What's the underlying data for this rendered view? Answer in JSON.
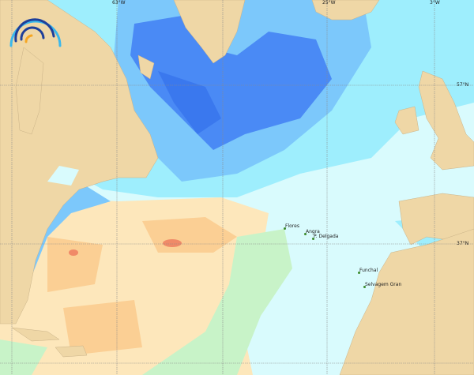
{
  "map": {
    "grid_labels": {
      "lon": [
        "63°W",
        "25°W",
        "3°W"
      ],
      "lat": [
        "57°N",
        "37°N"
      ]
    },
    "places": [
      "Flores",
      "Angra",
      "P. Delgada",
      "Funchal",
      "Selvagem Gran"
    ],
    "colors": {
      "land": "#efd7a6",
      "ocean_pale": "#d9fbfd",
      "blue_light": "#9eeefd",
      "blue_mid": "#7cc8fb",
      "blue_dark": "#4a8af5",
      "green": "#c8f3c8",
      "yellow": "#fde7bb",
      "orange": "#fbcf94",
      "red": "#f08a68"
    },
    "logo": "wave-arcs-logo"
  }
}
